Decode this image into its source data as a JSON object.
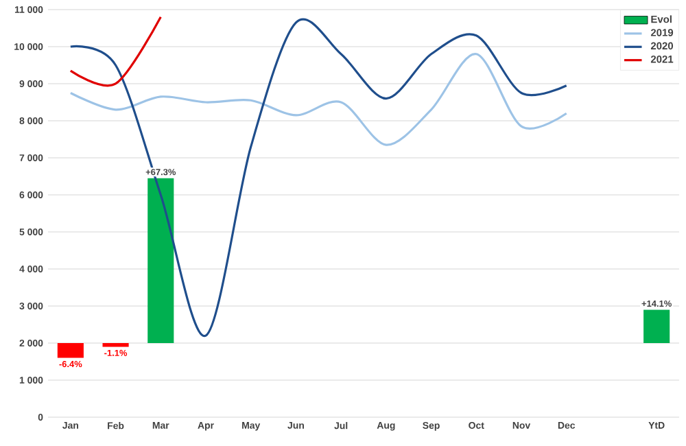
{
  "chart_data": {
    "type": "line",
    "categories": [
      "Jan",
      "Feb",
      "Mar",
      "Apr",
      "May",
      "Jun",
      "Jul",
      "Aug",
      "Sep",
      "Oct",
      "Nov",
      "Dec",
      null,
      "YtD"
    ],
    "series": [
      {
        "name": "Evol",
        "type": "bar",
        "color": "#00b050",
        "colors": [
          "#ff0000",
          "#ff0000",
          "#00b050",
          null,
          null,
          null,
          null,
          null,
          null,
          null,
          null,
          null,
          null,
          "#00b050"
        ],
        "base": [
          2000,
          2000,
          2000,
          null,
          null,
          null,
          null,
          null,
          null,
          null,
          null,
          null,
          null,
          2000
        ],
        "values": [
          -400,
          -100,
          4450,
          null,
          null,
          null,
          null,
          null,
          null,
          null,
          null,
          null,
          null,
          900
        ]
      },
      {
        "name": "2019",
        "color": "#9dc3e6",
        "values": [
          8750,
          8300,
          8650,
          8500,
          8550,
          8150,
          8500,
          7350,
          8300,
          9800,
          7850,
          8200,
          null,
          null
        ]
      },
      {
        "name": "2020",
        "color": "#1f4e8c",
        "values": [
          10000,
          9500,
          6000,
          2200,
          7300,
          10650,
          9800,
          8600,
          9800,
          10300,
          8750,
          8950,
          null,
          null
        ]
      },
      {
        "name": "2021",
        "color": "#e00000",
        "values": [
          9350,
          9000,
          10800,
          null,
          null,
          null,
          null,
          null,
          null,
          null,
          null,
          null,
          null,
          null
        ]
      }
    ],
    "annotations": [
      {
        "text": "-6.4%",
        "x": "Jan",
        "y": 1600
      },
      {
        "text": "-1.1%",
        "x": "Feb",
        "y": 1900
      },
      {
        "text": "+67.3%",
        "x": "Mar",
        "y": 6450
      },
      {
        "text": "+14.1%",
        "x": "YtD",
        "y": 2900
      }
    ],
    "ylim": [
      0,
      11000
    ],
    "yticks": [
      0,
      {
        "value": 1000,
        "label": "1 000"
      },
      {
        "value": 2000,
        "label": "2 000"
      },
      {
        "value": 3000,
        "label": "3 000"
      },
      {
        "value": 4000,
        "label": "4 000"
      },
      {
        "value": 5000,
        "label": "5 000"
      },
      {
        "value": 6000,
        "label": "6 000"
      },
      {
        "value": 7000,
        "label": "7 000"
      },
      {
        "value": 8000,
        "label": "8 000"
      },
      {
        "value": 9000,
        "label": "9 000"
      },
      {
        "value": 10000,
        "label": "10 000"
      },
      {
        "value": 11000,
        "label": "11 000"
      }
    ],
    "grid": "y",
    "legend": "top right",
    "marker": "none",
    "line_style": "solid"
  }
}
